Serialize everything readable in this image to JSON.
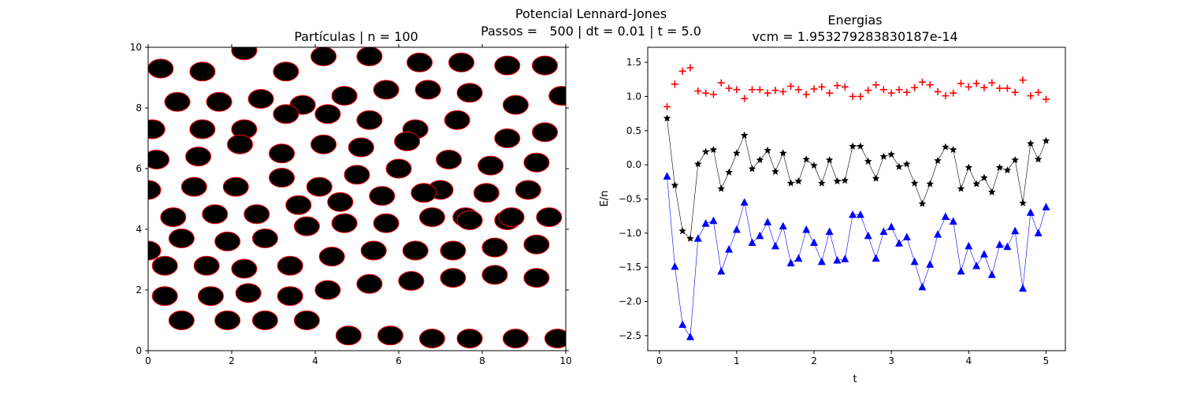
{
  "figure": {
    "suptitle_line1": "Potencial Lennard-Jones",
    "suptitle_line2": "Passos =   500 | dt = 0.01 | t = 5.0"
  },
  "chart_data": [
    {
      "type": "scatter",
      "title": "Partículas | n = 100",
      "xlabel": "",
      "ylabel": "",
      "xlim": [
        0,
        10
      ],
      "ylim": [
        0,
        10
      ],
      "xticks": [
        "0",
        "2",
        "4",
        "6",
        "8",
        "10"
      ],
      "yticks": [
        "0",
        "2",
        "4",
        "6",
        "8",
        "10"
      ],
      "marker": "circle",
      "fill_color": "#000000",
      "edge_color": "#ff0000",
      "x": [
        0.3,
        1.3,
        2.3,
        3.3,
        4.2,
        5.3,
        6.5,
        7.5,
        8.6,
        9.5,
        0.7,
        1.7,
        2.7,
        3.7,
        4.7,
        5.7,
        6.7,
        7.7,
        8.8,
        9.9,
        0.1,
        1.3,
        2.3,
        3.3,
        4.3,
        5.3,
        6.4,
        7.4,
        8.6,
        9.5,
        0.2,
        1.2,
        2.2,
        3.2,
        4.2,
        5.1,
        6.2,
        7.2,
        8.2,
        9.3,
        0,
        1.1,
        2.1,
        3.2,
        4.1,
        5.0,
        6.0,
        7.0,
        8.1,
        9.1,
        0.6,
        1.6,
        2.6,
        3.6,
        4.6,
        5.6,
        6.6,
        7.6,
        8.6,
        9.6,
        0,
        0.8,
        1.9,
        2.8,
        3.8,
        4.7,
        5.7,
        6.8,
        7.7,
        8.7,
        0.4,
        1.5,
        2.4,
        3.4,
        4.3,
        5.3,
        6.3,
        7.3,
        8.3,
        9.3,
        0.8,
        1.9,
        2.8,
        3.8,
        4.8,
        5.8,
        6.8,
        7.7,
        8.8,
        9.8,
        0.4,
        1.4,
        2.3,
        3.4,
        4.4,
        5.4,
        6.4,
        7.3,
        8.3,
        9.3
      ],
      "y": [
        9.3,
        9.2,
        9.9,
        9.2,
        9.7,
        9.7,
        9.5,
        9.5,
        9.4,
        9.4,
        8.2,
        8.2,
        8.3,
        8.1,
        8.4,
        8.6,
        8.6,
        8.5,
        8.1,
        8.4,
        7.3,
        7.3,
        7.3,
        7.8,
        7.8,
        7.6,
        7.3,
        7.6,
        7.0,
        7.2,
        6.3,
        6.4,
        6.8,
        6.5,
        6.8,
        6.7,
        6.9,
        6.3,
        6.1,
        6.2,
        5.3,
        5.4,
        5.4,
        5.7,
        5.4,
        5.8,
        6.0,
        5.3,
        5.2,
        5.3,
        4.4,
        4.5,
        4.5,
        4.8,
        4.9,
        5.1,
        5.2,
        4.4,
        4.3,
        4.4,
        3.3,
        3.7,
        3.6,
        3.7,
        4.1,
        4.2,
        4.2,
        4.4,
        4.3,
        4.4,
        1.8,
        1.8,
        1.9,
        1.8,
        2.0,
        2.2,
        2.3,
        2.4,
        2.5,
        2.4,
        1.0,
        1.0,
        1.0,
        1.0,
        0.5,
        0.5,
        0.4,
        0.4,
        0.4,
        0.4,
        2.8,
        2.8,
        2.7,
        2.8,
        3.1,
        3.3,
        3.3,
        3.3,
        3.4,
        3.5
      ]
    },
    {
      "type": "line",
      "title": "Energias",
      "subtitle": "vcm = 1.953279283830187e-14",
      "xlabel": "t",
      "ylabel": "E/n",
      "xlim": [
        -0.15,
        5.25
      ],
      "ylim": [
        -2.72,
        1.72
      ],
      "xticks": [
        0,
        1,
        2,
        3,
        4,
        5
      ],
      "yticks": [
        -2.5,
        -2.0,
        -1.5,
        -1.0,
        -0.5,
        0.0,
        0.5,
        1.0,
        1.5
      ],
      "ytick_labels": [
        "−2.5",
        "−2.0",
        "−1.5",
        "−1.0",
        "−0.5",
        "0.0",
        "0.5",
        "1.0",
        "1.5"
      ],
      "x": [
        0.1,
        0.2,
        0.3,
        0.4,
        0.5,
        0.6,
        0.7,
        0.8,
        0.9,
        1.0,
        1.1,
        1.2,
        1.3,
        1.4,
        1.5,
        1.6,
        1.7,
        1.8,
        1.9,
        2.0,
        2.1,
        2.2,
        2.3,
        2.4,
        2.5,
        2.6,
        2.7,
        2.8,
        2.9,
        3.0,
        3.1,
        3.2,
        3.3,
        3.4,
        3.5,
        3.6,
        3.7,
        3.8,
        3.9,
        4.0,
        4.1,
        4.2,
        4.3,
        4.4,
        4.5,
        4.6,
        4.7,
        4.8,
        4.9,
        5.0
      ],
      "series": [
        {
          "marker": "plus",
          "color": "#ff0000",
          "values": [
            0.85,
            1.18,
            1.37,
            1.42,
            1.08,
            1.05,
            1.03,
            1.2,
            1.12,
            1.1,
            0.97,
            1.1,
            1.1,
            1.05,
            1.09,
            1.07,
            1.15,
            1.1,
            1.03,
            1.11,
            1.14,
            1.05,
            1.16,
            1.14,
            1.0,
            1.0,
            1.09,
            1.17,
            1.1,
            1.05,
            1.1,
            1.06,
            1.13,
            1.21,
            1.17,
            1.07,
            1.01,
            1.05,
            1.19,
            1.14,
            1.19,
            1.13,
            1.2,
            1.12,
            1.12,
            1.06,
            1.24,
            1.01,
            1.06,
            0.96
          ]
        },
        {
          "marker": "star",
          "color": "#000000",
          "values": [
            0.68,
            -0.3,
            -0.97,
            -1.08,
            0.01,
            0.19,
            0.22,
            -0.35,
            -0.11,
            0.17,
            0.43,
            -0.06,
            0.07,
            0.21,
            -0.1,
            0.17,
            -0.27,
            -0.24,
            0.08,
            -0.01,
            -0.27,
            0.07,
            -0.24,
            -0.23,
            0.27,
            0.27,
            0.05,
            -0.2,
            0.12,
            0.15,
            -0.03,
            0.01,
            -0.27,
            -0.57,
            -0.28,
            0.06,
            0.26,
            0.22,
            -0.35,
            -0.04,
            -0.28,
            -0.19,
            -0.4,
            -0.04,
            -0.08,
            0.07,
            -0.56,
            0.31,
            0.08,
            0.35
          ]
        },
        {
          "marker": "triangle",
          "color": "#0000ff",
          "values": [
            -0.17,
            -1.49,
            -2.34,
            -2.52,
            -1.08,
            -0.86,
            -0.82,
            -1.56,
            -1.24,
            -0.95,
            -0.55,
            -1.14,
            -1.04,
            -0.84,
            -1.19,
            -0.9,
            -1.44,
            -1.37,
            -0.95,
            -1.14,
            -1.42,
            -0.98,
            -1.4,
            -1.38,
            -0.73,
            -0.73,
            -1.04,
            -1.37,
            -0.98,
            -0.91,
            -1.15,
            -1.06,
            -1.42,
            -1.79,
            -1.46,
            -1.02,
            -0.76,
            -0.83,
            -1.56,
            -1.19,
            -1.48,
            -1.31,
            -1.61,
            -1.17,
            -1.2,
            -0.97,
            -1.81,
            -0.7,
            -1.0,
            -0.62
          ]
        }
      ]
    }
  ]
}
